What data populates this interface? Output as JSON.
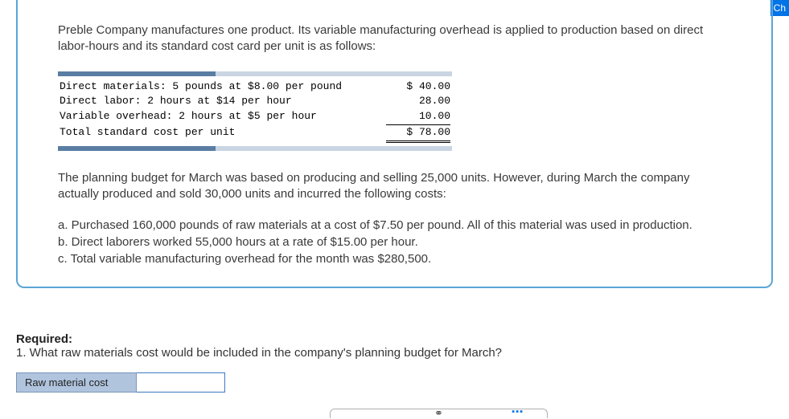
{
  "corner_tab": "Ch",
  "intro": "Preble Company manufactures one product. Its variable manufacturing overhead is applied to production based on direct labor-hours and its standard cost card per unit is as follows:",
  "cost_card": {
    "rows": [
      {
        "label": "Direct materials: 5 pounds at $8.00 per pound",
        "value": "$ 40.00"
      },
      {
        "label": "Direct labor: 2 hours at $14 per hour",
        "value": "28.00"
      },
      {
        "label": "Variable overhead: 2 hours at $5 per hour",
        "value": "10.00"
      }
    ],
    "total": {
      "label": "Total standard cost per unit",
      "value": "$ 78.00"
    }
  },
  "middle_para": "The planning budget for March was based on producing and selling 25,000 units. However, during March the company actually produced and sold 30,000 units and incurred the following costs:",
  "facts": {
    "a": "a. Purchased 160,000 pounds of raw materials at a cost of $7.50 per pound. All of this material was used in production.",
    "b": "b. Direct laborers worked 55,000 hours at a rate of $15.00 per hour.",
    "c": "c. Total variable manufacturing overhead for the month was $280,500."
  },
  "required": {
    "header": "Required:",
    "q1": "1. What raw materials cost would be included in the company's planning budget for March?",
    "answer_label": "Raw material cost",
    "answer_value": ""
  },
  "link_glyph": "⚭",
  "dots": "▪▪▪"
}
